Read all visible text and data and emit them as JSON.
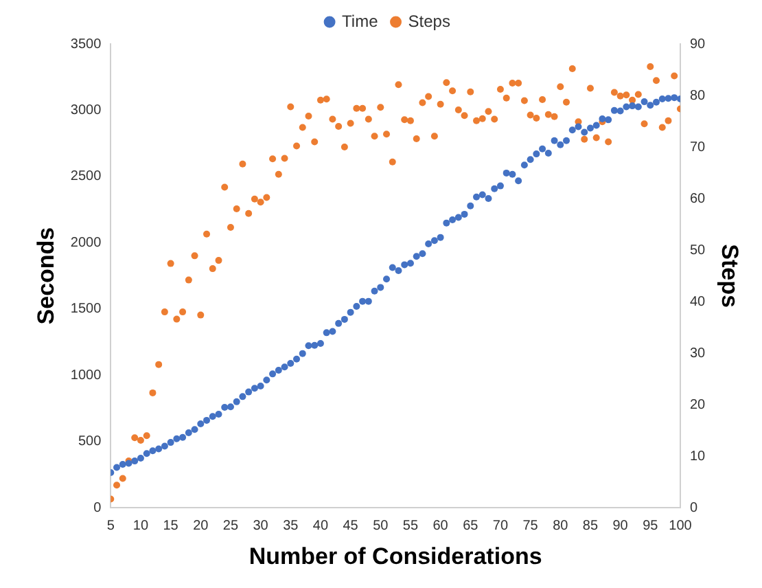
{
  "chart_data": {
    "type": "scatter",
    "xlabel": "Number of Considerations",
    "ylabel": "Seconds",
    "y2label": "Steps",
    "legend": "top",
    "marker": "circle",
    "grid": false,
    "x": [
      5,
      6,
      7,
      8,
      9,
      10,
      11,
      12,
      13,
      14,
      15,
      16,
      17,
      18,
      19,
      20,
      21,
      22,
      23,
      24,
      25,
      26,
      27,
      28,
      29,
      30,
      31,
      32,
      33,
      34,
      35,
      36,
      37,
      38,
      39,
      40,
      41,
      42,
      43,
      44,
      45,
      46,
      47,
      48,
      49,
      50,
      51,
      52,
      53,
      54,
      55,
      56,
      57,
      58,
      59,
      60,
      61,
      62,
      63,
      64,
      65,
      66,
      67,
      68,
      69,
      70,
      71,
      72,
      73,
      74,
      75,
      76,
      77,
      78,
      79,
      80,
      81,
      82,
      83,
      84,
      85,
      86,
      87,
      88,
      89,
      90,
      91,
      92,
      93,
      94,
      95,
      96,
      97,
      98,
      99,
      100
    ],
    "xlim": [
      5,
      100
    ],
    "xticks": [
      5,
      10,
      15,
      20,
      25,
      30,
      35,
      40,
      45,
      50,
      55,
      60,
      65,
      70,
      75,
      80,
      85,
      90,
      95,
      100
    ],
    "ylim": [
      0,
      3500
    ],
    "yticks": [
      0,
      500,
      1000,
      1500,
      2000,
      2500,
      3000,
      3500
    ],
    "y2lim": [
      0,
      90
    ],
    "y2ticks": [
      0,
      10,
      20,
      30,
      40,
      50,
      60,
      70,
      80,
      90
    ],
    "series": [
      {
        "name": "Time",
        "color": "#4472c4",
        "values": [
          265,
          304,
          328,
          335,
          353,
          374,
          409,
          430,
          444,
          465,
          493,
          521,
          531,
          566,
          591,
          633,
          660,
          689,
          706,
          758,
          762,
          800,
          839,
          874,
          902,
          919,
          964,
          1010,
          1038,
          1062,
          1090,
          1122,
          1164,
          1223,
          1226,
          1240,
          1321,
          1331,
          1391,
          1422,
          1475,
          1520,
          1558,
          1558,
          1635,
          1663,
          1726,
          1813,
          1789,
          1834,
          1845,
          1897,
          1918,
          1992,
          2016,
          2040,
          2149,
          2173,
          2191,
          2215,
          2278,
          2345,
          2362,
          2334,
          2408,
          2429,
          2526,
          2516,
          2467,
          2586,
          2628,
          2670,
          2708,
          2676,
          2770,
          2739,
          2770,
          2851,
          2875,
          2834,
          2865,
          2886,
          2935,
          2928,
          2998,
          2995,
          3026,
          3033,
          3026,
          3064,
          3037,
          3061,
          3085,
          3089,
          3095,
          3085
        ]
      },
      {
        "name": "Steps",
        "color": "#ed7d31",
        "axis": "y2",
        "values": [
          1.7,
          4.4,
          5.7,
          9.1,
          13.6,
          13.1,
          14.0,
          22.3,
          27.8,
          38.0,
          47.4,
          36.6,
          38.0,
          44.2,
          48.9,
          37.4,
          53.1,
          46.4,
          48.0,
          62.2,
          54.4,
          58.0,
          66.7,
          57.1,
          59.9,
          59.3,
          60.2,
          67.7,
          64.7,
          67.8,
          77.8,
          70.2,
          73.8,
          76.0,
          71.0,
          79.1,
          79.3,
          75.4,
          74.0,
          70.0,
          74.6,
          77.5,
          77.5,
          75.4,
          72.1,
          77.7,
          72.5,
          67.1,
          82.1,
          75.3,
          75.1,
          71.6,
          78.6,
          79.8,
          72.1,
          78.3,
          82.5,
          80.9,
          77.2,
          76.1,
          80.7,
          75.1,
          75.5,
          76.9,
          75.4,
          81.2,
          79.5,
          82.4,
          82.4,
          79.0,
          76.2,
          75.6,
          79.2,
          76.3,
          75.9,
          81.7,
          78.7,
          85.2,
          74.9,
          71.5,
          81.4,
          71.8,
          74.9,
          71.0,
          80.6,
          79.9,
          80.1,
          79.1,
          80.2,
          74.5,
          85.6,
          82.9,
          73.8,
          75.1,
          83.8,
          77.4
        ]
      }
    ]
  }
}
